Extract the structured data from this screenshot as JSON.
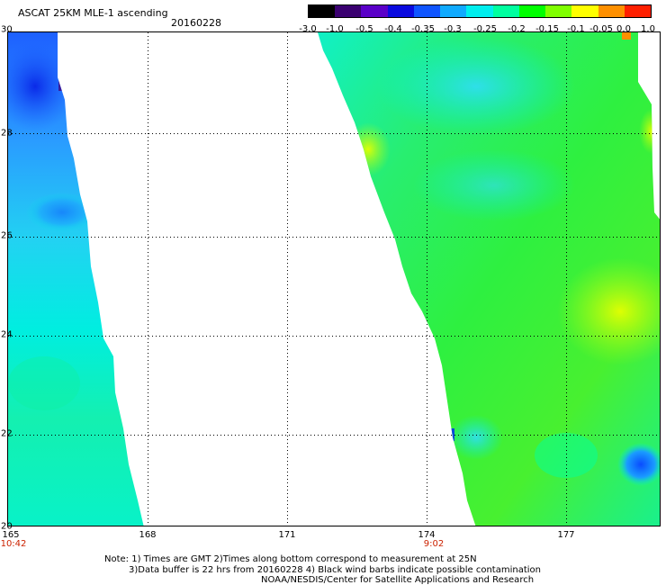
{
  "header": {
    "title": "ASCAT 25KM MLE-1 ascending",
    "date": "20160228"
  },
  "colorbar": {
    "labels": [
      "-3.0",
      "-1.0",
      "-0.5",
      "-0.4",
      "-0.35",
      "-0.3",
      "-0.25",
      "-0.2",
      "-0.15",
      "-0.1",
      "-0.05",
      "0.0",
      "1.0"
    ],
    "colors": [
      "#000000",
      "#3a0070",
      "#5a00c8",
      "#0a0adf",
      "#0f55ff",
      "#10aaff",
      "#00eeee",
      "#00ffa0",
      "#00ff00",
      "#80ff00",
      "#ffff00",
      "#ff9000",
      "#ff2000"
    ]
  },
  "map": {
    "lat_labels": [
      "30",
      "28",
      "26",
      "24",
      "22",
      "20"
    ],
    "lon_labels": [
      "165",
      "168",
      "171",
      "174",
      "177"
    ],
    "time_labels": [
      "10:42",
      "9:02"
    ]
  },
  "notes": [
    "Note: 1) Times are GMT 2)Times along bottom correspond to measurement at 25N",
    "3)Data buffer is 22 hrs from 20160228 4) Black wind barbs indicate possible contamination",
    "NOAA/NESDIS/Center for Satellite Applications and Research"
  ]
}
